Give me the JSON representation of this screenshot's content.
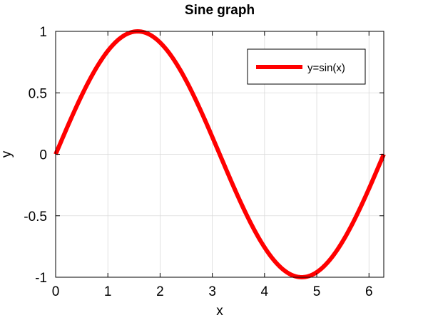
{
  "chart_data": {
    "type": "line",
    "title": "Sine graph",
    "xlabel": "x",
    "ylabel": "y",
    "xlim": [
      0,
      6.283185
    ],
    "ylim": [
      -1,
      1
    ],
    "x_ticks": [
      0,
      1,
      2,
      3,
      4,
      5,
      6
    ],
    "x_tick_labels": [
      "0",
      "1",
      "2",
      "3",
      "4",
      "5",
      "6"
    ],
    "y_ticks": [
      -1,
      -0.5,
      0,
      0.5,
      1
    ],
    "y_tick_labels": [
      "-1",
      "-0.5",
      "0",
      "0.5",
      "1"
    ],
    "grid": true,
    "legend_position": "top-right",
    "series": [
      {
        "name": "y=sin(x)",
        "color": "#ff0000",
        "function": "sin",
        "x": [
          0,
          0.5236,
          1.0472,
          1.5708,
          2.0944,
          2.618,
          3.1416,
          3.6652,
          4.1888,
          4.7124,
          5.236,
          5.7596,
          6.2832
        ],
        "y": [
          0,
          0.5,
          0.866,
          1,
          0.866,
          0.5,
          0,
          -0.5,
          -0.866,
          -1,
          -0.866,
          -0.5,
          0
        ]
      }
    ]
  }
}
